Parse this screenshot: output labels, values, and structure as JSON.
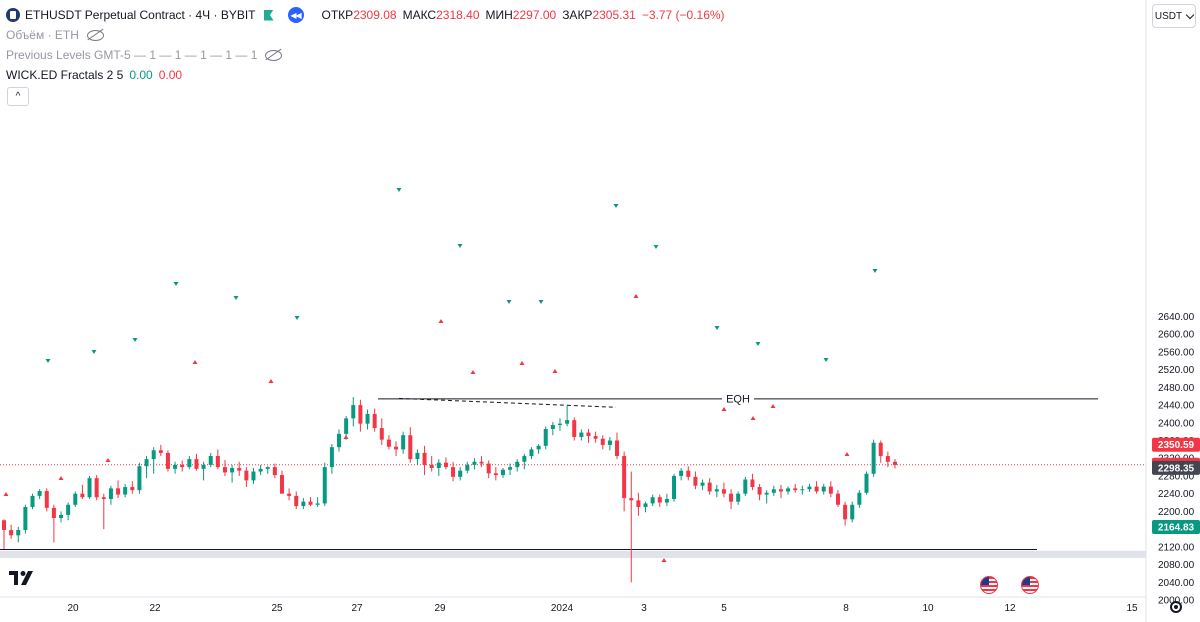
{
  "header": {
    "symbol_title": "ETHUSDT Perpetual Contract · 4Ч · BYBIT",
    "ohlc": {
      "open_label": "ОТКР",
      "open": "2309.08",
      "high_label": "МАКС",
      "high": "2318.40",
      "low_label": "МИН",
      "low": "2297.00",
      "close_label": "ЗАКР",
      "close": "2305.31",
      "change": "−3.77 (−0.16%)"
    },
    "currency": "USDT"
  },
  "indicators": {
    "volume": "Объём · ETH",
    "prev_levels": "Previous Levels GMT-5 — 1 — 1 — 1 — 1 — 1",
    "fractals_name": "WICK.ED Fractals 2 5",
    "fractals_v1": "0.00",
    "fractals_v2": "0.00"
  },
  "chart_data": {
    "type": "candlestick",
    "y_ticks": [
      "2640.00",
      "2600.00",
      "2560.00",
      "2520.00",
      "2480.00",
      "2440.00",
      "2400.00",
      "2360.00",
      "2320.00",
      "2280.00",
      "2240.00",
      "2200.00",
      "2160.00",
      "2120.00",
      "2080.00",
      "2040.00",
      "2000.00"
    ],
    "x_ticks": [
      "20",
      "22",
      "25",
      "27",
      "29",
      "2024",
      "3",
      "5",
      "8",
      "10",
      "12",
      "15"
    ],
    "price_labels": [
      {
        "text": "2350.59",
        "price": 2350.59,
        "color": "#f23645"
      },
      {
        "text": "2305.31",
        "price": 2305.31,
        "color": "#f23645"
      },
      {
        "text": "2298.35",
        "price": 2298.35,
        "color": "#434651"
      },
      {
        "text": "2164.83",
        "price": 2164.83,
        "color": "#089981"
      }
    ],
    "eqh_label": "EQH",
    "eqh_price": 2454,
    "lower_level_price": 2114,
    "zone": [
      2095,
      2111
    ],
    "current_price": 2305.31
  },
  "colors": {
    "up": "#089981",
    "down": "#f23645",
    "axis_text": "#131722",
    "grid": "#f0f3fa"
  }
}
